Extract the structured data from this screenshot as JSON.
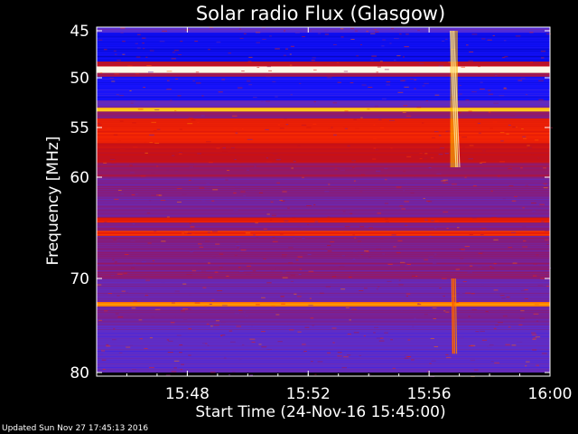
{
  "chart_data": {
    "type": "heatmap",
    "title": "Solar radio Flux (Glasgow)",
    "xlabel": "Start Time (24-Nov-16 15:45:00)",
    "ylabel": "Frequency [MHz]",
    "x_ticks": [
      "15:48",
      "15:52",
      "15:56",
      "16:00"
    ],
    "x_tick_minutes": [
      3,
      7,
      11,
      15
    ],
    "xlim_minutes": [
      0,
      15
    ],
    "y_ticks": [
      45,
      50,
      55,
      60,
      70,
      80
    ],
    "ylim": [
      44.5,
      80
    ],
    "y_axis_inverted": true,
    "y_axis_scale": "nonlinear",
    "colormap": [
      "#000080",
      "#1010ff",
      "#5a2fd0",
      "#8c1a70",
      "#cc1010",
      "#ff2a00",
      "#ffc000",
      "#ffffff"
    ],
    "frequency_bands": [
      {
        "from": 44.5,
        "to": 45.2,
        "level": 0.28
      },
      {
        "from": 45.2,
        "to": 48.3,
        "level": 0.12
      },
      {
        "from": 48.3,
        "to": 48.8,
        "level": 0.55
      },
      {
        "from": 48.8,
        "to": 49.5,
        "level": 0.98
      },
      {
        "from": 49.5,
        "to": 49.9,
        "level": 0.45
      },
      {
        "from": 49.9,
        "to": 52.3,
        "level": 0.16
      },
      {
        "from": 52.3,
        "to": 53.0,
        "level": 0.32
      },
      {
        "from": 53.0,
        "to": 53.4,
        "level": 0.88
      },
      {
        "from": 53.4,
        "to": 54.1,
        "level": 0.42
      },
      {
        "from": 54.1,
        "to": 56.6,
        "level": 0.66
      },
      {
        "from": 56.6,
        "to": 58.5,
        "level": 0.56
      },
      {
        "from": 58.5,
        "to": 60.0,
        "level": 0.46
      },
      {
        "from": 60.0,
        "to": 64.0,
        "level": 0.38
      },
      {
        "from": 64.0,
        "to": 64.5,
        "level": 0.64
      },
      {
        "from": 64.5,
        "to": 65.3,
        "level": 0.4
      },
      {
        "from": 65.3,
        "to": 65.8,
        "level": 0.68
      },
      {
        "from": 65.8,
        "to": 70.0,
        "level": 0.4
      },
      {
        "from": 70.0,
        "to": 72.5,
        "level": 0.34
      },
      {
        "from": 72.5,
        "to": 73.0,
        "level": 0.8
      },
      {
        "from": 73.0,
        "to": 75.0,
        "level": 0.36
      },
      {
        "from": 75.0,
        "to": 80.0,
        "level": 0.3
      }
    ],
    "bursts": [
      {
        "start_minute": 11.7,
        "end_minute": 11.95,
        "freq_from": 45,
        "freq_to": 59,
        "level": 0.85
      },
      {
        "start_minute": 11.75,
        "end_minute": 11.85,
        "freq_from": 70,
        "freq_to": 78,
        "level": 0.7
      }
    ]
  },
  "footer": {
    "updated": "Updated Sun Nov 27 17:45:13 2016"
  },
  "colors": {
    "background": "#000000",
    "axis": "#ffffff"
  }
}
